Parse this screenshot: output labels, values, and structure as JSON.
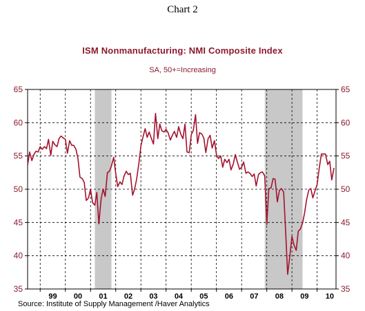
{
  "header": {
    "chart_label": "Chart 2",
    "title": "ISM Nonmanufacturing: NMI Composite Index",
    "subtitle": "SA, 50+=Increasing"
  },
  "footer": {
    "source": "Source:  Institute of Supply Management /Haver Analytics"
  },
  "colors": {
    "line": "#a3122e",
    "recession": "#c8c8c8",
    "axis_labels": "#8b1a2e"
  },
  "chart_data": {
    "type": "line",
    "title": "ISM Nonmanufacturing: NMI Composite Index",
    "subtitle": "SA, 50+=Increasing",
    "xlabel": "",
    "ylabel": "",
    "x_start": 1998.5,
    "x_end": 2010.75,
    "ylim": [
      35,
      65
    ],
    "yticks": [
      35,
      40,
      45,
      50,
      55,
      60,
      65
    ],
    "ytick_labels": [
      "35",
      "40",
      "45",
      "50",
      "55",
      "60",
      "65"
    ],
    "y_axes": [
      "left",
      "right"
    ],
    "xtick_labels": [
      "99",
      "00",
      "01",
      "02",
      "03",
      "04",
      "05",
      "06",
      "07",
      "08",
      "09",
      "10"
    ],
    "xtick_years": [
      1999,
      2000,
      2001,
      2002,
      2003,
      2004,
      2005,
      2006,
      2007,
      2008,
      2009,
      2010
    ],
    "grid": {
      "horizontal": true,
      "vertical": true,
      "style": "dashed"
    },
    "recessions": [
      {
        "start": 2001.17,
        "end": 2001.83
      },
      {
        "start": 2007.92,
        "end": 2009.42
      }
    ],
    "series": [
      {
        "values": [
          [
            1998.5,
            53.6
          ],
          [
            1998.58,
            55.6
          ],
          [
            1998.67,
            54.3
          ],
          [
            1998.75,
            55.2
          ],
          [
            1998.83,
            55.7
          ],
          [
            1998.92,
            55.6
          ],
          [
            1999.0,
            56.4
          ],
          [
            1999.08,
            56.0
          ],
          [
            1999.17,
            56.4
          ],
          [
            1999.25,
            56.1
          ],
          [
            1999.33,
            57.5
          ],
          [
            1999.42,
            55.1
          ],
          [
            1999.5,
            57.2
          ],
          [
            1999.58,
            56.7
          ],
          [
            1999.67,
            56.4
          ],
          [
            1999.75,
            57.6
          ],
          [
            1999.83,
            58.0
          ],
          [
            1999.92,
            57.7
          ],
          [
            2000.0,
            57.5
          ],
          [
            2000.08,
            55.4
          ],
          [
            2000.17,
            57.3
          ],
          [
            2000.25,
            56.6
          ],
          [
            2000.33,
            56.6
          ],
          [
            2000.42,
            56.0
          ],
          [
            2000.5,
            54.6
          ],
          [
            2000.58,
            51.8
          ],
          [
            2000.67,
            51.6
          ],
          [
            2000.75,
            51.0
          ],
          [
            2000.83,
            48.3
          ],
          [
            2000.92,
            48.7
          ],
          [
            2001.0,
            50.0
          ],
          [
            2001.08,
            48.0
          ],
          [
            2001.17,
            47.6
          ],
          [
            2001.25,
            49.5
          ],
          [
            2001.33,
            44.8
          ],
          [
            2001.42,
            48.6
          ],
          [
            2001.5,
            50.0
          ],
          [
            2001.58,
            48.9
          ],
          [
            2001.67,
            52.5
          ],
          [
            2001.75,
            52.7
          ],
          [
            2001.83,
            53.5
          ],
          [
            2001.92,
            54.8
          ],
          [
            2002.0,
            52.4
          ],
          [
            2002.08,
            50.4
          ],
          [
            2002.17,
            51.1
          ],
          [
            2002.25,
            50.7
          ],
          [
            2002.33,
            52.0
          ],
          [
            2002.42,
            52.7
          ],
          [
            2002.5,
            52.2
          ],
          [
            2002.58,
            52.4
          ],
          [
            2002.67,
            49.1
          ],
          [
            2002.75,
            50.0
          ],
          [
            2002.83,
            51.5
          ],
          [
            2002.92,
            53.9
          ],
          [
            2003.0,
            56.5
          ],
          [
            2003.08,
            57.8
          ],
          [
            2003.17,
            59.1
          ],
          [
            2003.25,
            57.8
          ],
          [
            2003.33,
            58.6
          ],
          [
            2003.42,
            57.6
          ],
          [
            2003.5,
            56.8
          ],
          [
            2003.58,
            61.4
          ],
          [
            2003.67,
            57.6
          ],
          [
            2003.75,
            59.8
          ],
          [
            2003.83,
            58.8
          ],
          [
            2003.92,
            58.6
          ],
          [
            2004.0,
            59.0
          ],
          [
            2004.08,
            58.5
          ],
          [
            2004.17,
            57.4
          ],
          [
            2004.25,
            58.1
          ],
          [
            2004.33,
            58.7
          ],
          [
            2004.42,
            57.8
          ],
          [
            2004.5,
            59.4
          ],
          [
            2004.58,
            58.3
          ],
          [
            2004.67,
            57.6
          ],
          [
            2004.75,
            59.8
          ],
          [
            2004.83,
            55.6
          ],
          [
            2004.92,
            55.5
          ],
          [
            2005.0,
            58.2
          ],
          [
            2005.08,
            58.8
          ],
          [
            2005.17,
            61.2
          ],
          [
            2005.25,
            56.9
          ],
          [
            2005.33,
            58.5
          ],
          [
            2005.42,
            58.3
          ],
          [
            2005.5,
            57.7
          ],
          [
            2005.58,
            55.5
          ],
          [
            2005.67,
            57.6
          ],
          [
            2005.75,
            58.1
          ],
          [
            2005.83,
            56.2
          ],
          [
            2005.92,
            57.3
          ],
          [
            2006.0,
            55.2
          ],
          [
            2006.08,
            54.6
          ],
          [
            2006.17,
            55.0
          ],
          [
            2006.25,
            53.3
          ],
          [
            2006.33,
            54.5
          ],
          [
            2006.42,
            54.0
          ],
          [
            2006.5,
            54.5
          ],
          [
            2006.58,
            52.9
          ],
          [
            2006.67,
            53.8
          ],
          [
            2006.75,
            55.2
          ],
          [
            2006.83,
            54.1
          ],
          [
            2006.92,
            53.0
          ],
          [
            2007.0,
            53.3
          ],
          [
            2007.08,
            54.1
          ],
          [
            2007.17,
            52.4
          ],
          [
            2007.25,
            52.6
          ],
          [
            2007.33,
            52.4
          ],
          [
            2007.42,
            51.9
          ],
          [
            2007.5,
            52.3
          ],
          [
            2007.58,
            50.5
          ],
          [
            2007.67,
            52.2
          ],
          [
            2007.75,
            52.5
          ],
          [
            2007.83,
            52.6
          ],
          [
            2007.92,
            52.0
          ],
          [
            2008.0,
            44.7
          ],
          [
            2008.08,
            50.1
          ],
          [
            2008.17,
            50.2
          ],
          [
            2008.25,
            51.6
          ],
          [
            2008.33,
            51.5
          ],
          [
            2008.42,
            48.1
          ],
          [
            2008.5,
            49.8
          ],
          [
            2008.58,
            50.1
          ],
          [
            2008.67,
            49.6
          ],
          [
            2008.75,
            43.6
          ],
          [
            2008.83,
            37.2
          ],
          [
            2008.92,
            40.1
          ],
          [
            2009.0,
            42.9
          ],
          [
            2009.08,
            41.6
          ],
          [
            2009.17,
            40.8
          ],
          [
            2009.25,
            43.7
          ],
          [
            2009.33,
            44.0
          ],
          [
            2009.42,
            44.9
          ],
          [
            2009.5,
            46.4
          ],
          [
            2009.58,
            48.4
          ],
          [
            2009.67,
            49.9
          ],
          [
            2009.75,
            50.1
          ],
          [
            2009.83,
            48.7
          ],
          [
            2009.92,
            49.8
          ],
          [
            2010.0,
            50.7
          ],
          [
            2010.08,
            53.1
          ],
          [
            2010.17,
            55.3
          ],
          [
            2010.25,
            55.3
          ],
          [
            2010.33,
            55.3
          ],
          [
            2010.42,
            53.7
          ],
          [
            2010.5,
            54.2
          ],
          [
            2010.58,
            51.4
          ],
          [
            2010.67,
            53.2
          ]
        ]
      }
    ]
  }
}
